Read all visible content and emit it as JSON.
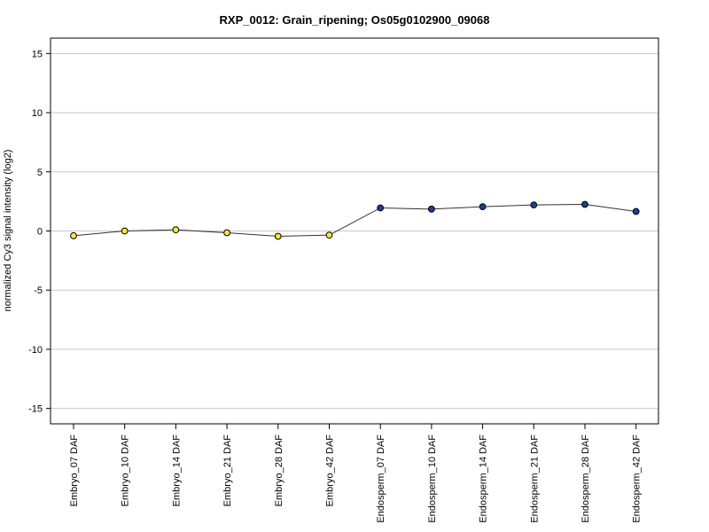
{
  "chart_data": {
    "type": "line",
    "title": "RXP_0012: Grain_ripening; Os05g0102900_09068",
    "xlabel": "",
    "ylabel": "normalized Cy3 signal intensity (log2)",
    "ylim": [
      -16.3,
      16.3
    ],
    "yticks": [
      -15,
      -10,
      -5,
      0,
      5,
      10,
      15
    ],
    "grid": true,
    "categories": [
      "Embryo_07 DAF",
      "Embryo_10 DAF",
      "Embryo_14 DAF",
      "Embryo_21 DAF",
      "Embryo_28 DAF",
      "Embryo_42 DAF",
      "Endosperm_07 DAF",
      "Endosperm_10 DAF",
      "Endosperm_14 DAF",
      "Endosperm_21 DAF",
      "Endosperm_28 DAF",
      "Endosperm_42 DAF"
    ],
    "values": [
      -0.4,
      0.0,
      0.1,
      -0.15,
      -0.45,
      -0.35,
      1.95,
      1.85,
      2.05,
      2.2,
      2.25,
      1.65
    ],
    "point_colors": [
      "#f5e642",
      "#f5e642",
      "#f5e642",
      "#f5e642",
      "#f5e642",
      "#f5e642",
      "#1f3f94",
      "#1f3f94",
      "#1f3f94",
      "#1f3f94",
      "#1f3f94",
      "#1f3f94"
    ]
  }
}
